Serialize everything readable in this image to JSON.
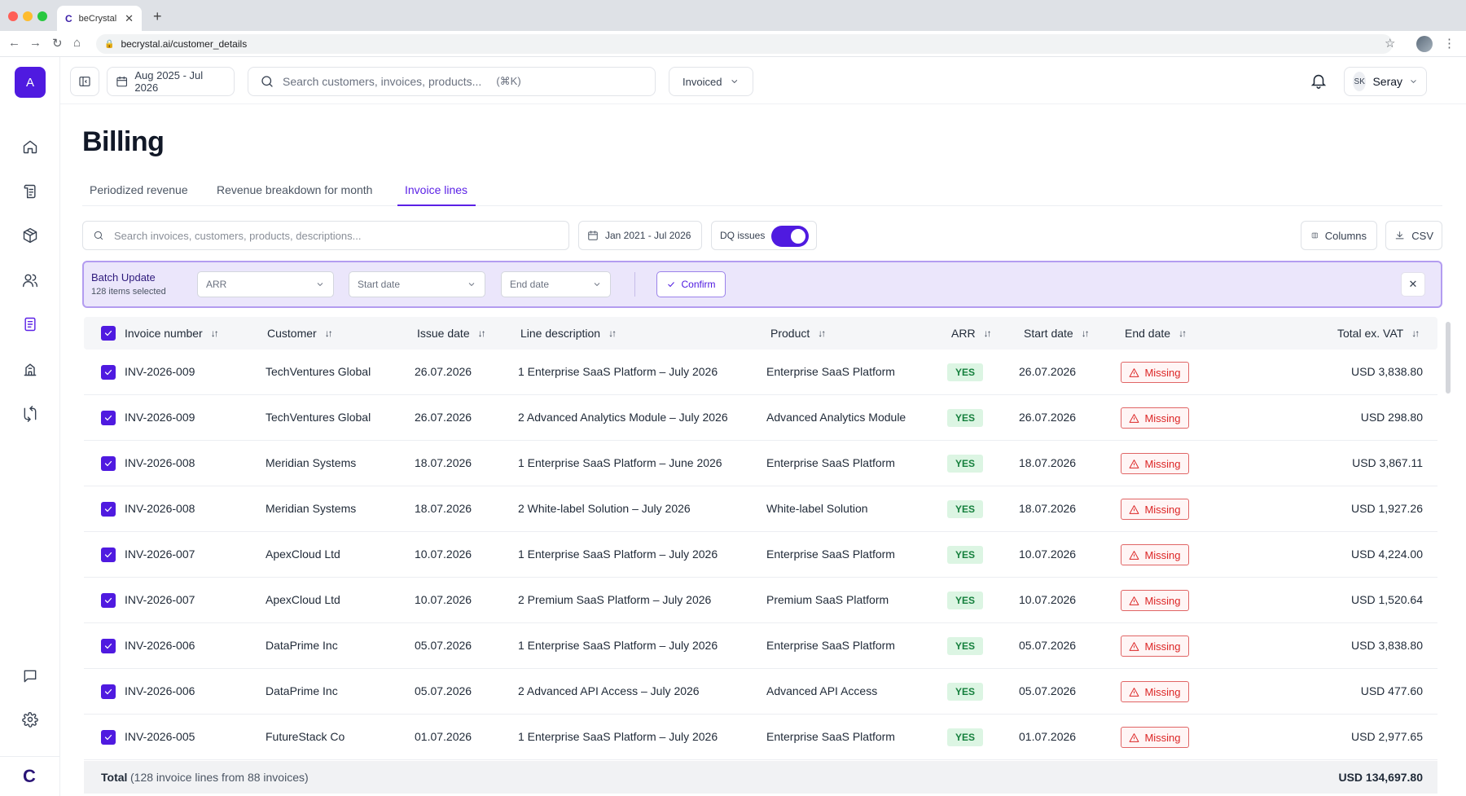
{
  "browser": {
    "tab_title": "beCrystal",
    "tab_logo": "C",
    "url": "becrystal.ai/customer_details",
    "traffic_colors": [
      "#ff5f57",
      "#febc2e",
      "#28c840"
    ]
  },
  "sidebar": {
    "workspace_initial": "A",
    "items": [
      {
        "icon": "home-icon"
      },
      {
        "icon": "ledger-icon"
      },
      {
        "icon": "box-icon"
      },
      {
        "icon": "users-icon"
      },
      {
        "icon": "document-icon",
        "active": true
      },
      {
        "icon": "building-icon"
      },
      {
        "icon": "transfer-icon"
      }
    ],
    "bottom_items": [
      {
        "icon": "chat-icon"
      },
      {
        "icon": "gear-icon"
      }
    ],
    "brand_logo": "C"
  },
  "topbar": {
    "date_range": "Aug 2025 - Jul 2026",
    "search_placeholder": "Search customers, invoices, products...",
    "search_shortcut": "(⌘K)",
    "status_filter": "Invoiced",
    "user_initials": "SK",
    "user_name": "Seray"
  },
  "page": {
    "title": "Billing",
    "tabs": [
      {
        "label": "Periodized revenue"
      },
      {
        "label": "Revenue breakdown for month"
      },
      {
        "label": "Invoice lines",
        "active": true
      }
    ]
  },
  "filters": {
    "search_placeholder": "Search invoices, customers, products, descriptions...",
    "date_range": "Jan 2021 - Jul 2026",
    "dq_label": "DQ issues",
    "dq_enabled": true,
    "columns_label": "Columns",
    "csv_label": "CSV"
  },
  "batch": {
    "title": "Batch Update",
    "subtitle": "128 items selected",
    "arr_select": "ARR",
    "start_select": "Start date",
    "end_select": "End date",
    "confirm_label": "Confirm"
  },
  "table": {
    "columns": [
      "Invoice number",
      "Customer",
      "Issue date",
      "Line description",
      "Product",
      "ARR",
      "Start date",
      "End date",
      "Total ex. VAT"
    ],
    "rows": [
      {
        "invoice": "INV-2026-009",
        "customer": "TechVentures Global",
        "issue": "26.07.2026",
        "desc": "1 Enterprise SaaS Platform – July 2026",
        "product": "Enterprise SaaS Platform",
        "arr": "YES",
        "start": "26.07.2026",
        "end": "Missing",
        "total": "USD 3,838.80"
      },
      {
        "invoice": "INV-2026-009",
        "customer": "TechVentures Global",
        "issue": "26.07.2026",
        "desc": "2 Advanced Analytics Module – July 2026",
        "product": "Advanced Analytics Module",
        "arr": "YES",
        "start": "26.07.2026",
        "end": "Missing",
        "total": "USD 298.80"
      },
      {
        "invoice": "INV-2026-008",
        "customer": "Meridian Systems",
        "issue": "18.07.2026",
        "desc": "1 Enterprise SaaS Platform – June 2026",
        "product": "Enterprise SaaS Platform",
        "arr": "YES",
        "start": "18.07.2026",
        "end": "Missing",
        "total": "USD 3,867.11"
      },
      {
        "invoice": "INV-2026-008",
        "customer": "Meridian Systems",
        "issue": "18.07.2026",
        "desc": "2 White-label Solution – July 2026",
        "product": "White-label Solution",
        "arr": "YES",
        "start": "18.07.2026",
        "end": "Missing",
        "total": "USD 1,927.26"
      },
      {
        "invoice": "INV-2026-007",
        "customer": "ApexCloud Ltd",
        "issue": "10.07.2026",
        "desc": "1 Enterprise SaaS Platform – July 2026",
        "product": "Enterprise SaaS Platform",
        "arr": "YES",
        "start": "10.07.2026",
        "end": "Missing",
        "total": "USD 4,224.00"
      },
      {
        "invoice": "INV-2026-007",
        "customer": "ApexCloud Ltd",
        "issue": "10.07.2026",
        "desc": "2 Premium SaaS Platform – July 2026",
        "product": "Premium SaaS Platform",
        "arr": "YES",
        "start": "10.07.2026",
        "end": "Missing",
        "total": "USD 1,520.64"
      },
      {
        "invoice": "INV-2026-006",
        "customer": "DataPrime Inc",
        "issue": "05.07.2026",
        "desc": "1 Enterprise SaaS Platform – July 2026",
        "product": "Enterprise SaaS Platform",
        "arr": "YES",
        "start": "05.07.2026",
        "end": "Missing",
        "total": "USD 3,838.80"
      },
      {
        "invoice": "INV-2026-006",
        "customer": "DataPrime Inc",
        "issue": "05.07.2026",
        "desc": "2 Advanced API Access – July 2026",
        "product": "Advanced API Access",
        "arr": "YES",
        "start": "05.07.2026",
        "end": "Missing",
        "total": "USD 477.60"
      },
      {
        "invoice": "INV-2026-005",
        "customer": "FutureStack Co",
        "issue": "01.07.2026",
        "desc": "1 Enterprise SaaS Platform – July 2026",
        "product": "Enterprise SaaS Platform",
        "arr": "YES",
        "start": "01.07.2026",
        "end": "Missing",
        "total": "USD 2,977.65"
      }
    ],
    "total_label": "Total",
    "total_detail": "(128 invoice lines from 88 invoices)",
    "total_value": "USD 134,697.80"
  },
  "colors": {
    "accent": "#4f1ae0",
    "batch_bg": "#ebe6fb",
    "yes_bg": "#dcf5e3",
    "missing": "#dc2626"
  }
}
